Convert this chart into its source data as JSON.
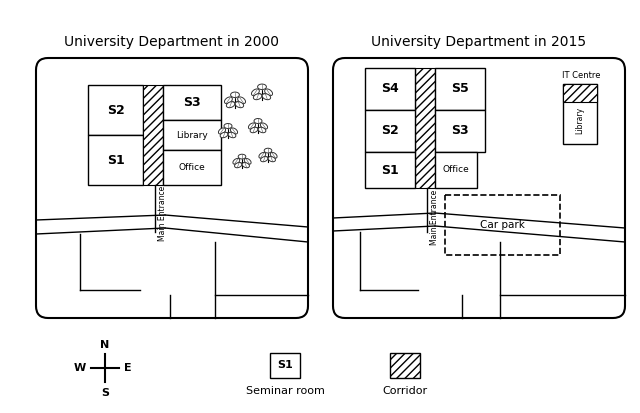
{
  "title_2000": "University Department in 2000",
  "title_2015": "University Department in 2015",
  "bg_color": "#ffffff",
  "legend_seminar": "Seminar room",
  "legend_corridor": "Corridor"
}
